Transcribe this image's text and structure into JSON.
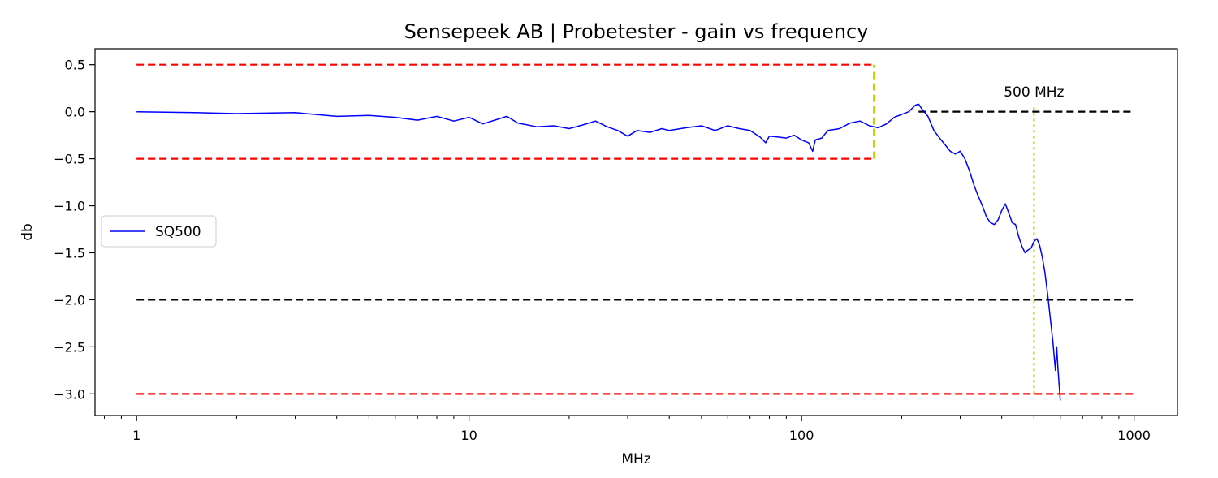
{
  "chart_data": {
    "type": "line",
    "title": "Sensepeek AB | Probetester - gain vs frequency",
    "xlabel": "MHz",
    "ylabel": "db",
    "xscale": "log",
    "xlim": [
      0.75,
      1350
    ],
    "ylim": [
      -3.23,
      0.67
    ],
    "xticks": [
      1,
      10,
      100,
      1000
    ],
    "xtick_labels": [
      "1",
      "10",
      "100",
      "1000"
    ],
    "yticks": [
      0.5,
      0.0,
      -0.5,
      -1.0,
      -1.5,
      -2.0,
      -2.5,
      -3.0
    ],
    "ytick_labels": [
      "0.5",
      "0.0",
      "−0.5",
      "−1.0",
      "−1.5",
      "−2.0",
      "−2.5",
      "−3.0"
    ],
    "grid": false,
    "legend": {
      "placement": "center-left",
      "entries": [
        "SQ500"
      ]
    },
    "series": [
      {
        "name": "SQ500",
        "color": "#0000ff",
        "x": [
          1,
          1.5,
          2,
          3,
          4,
          5,
          6,
          7,
          8,
          9,
          10,
          11,
          13,
          14,
          16,
          18,
          20,
          22,
          24,
          26,
          28,
          30,
          32,
          35,
          38,
          40,
          45,
          50,
          55,
          60,
          65,
          70,
          75,
          78,
          80,
          85,
          90,
          95,
          100,
          105,
          108,
          110,
          115,
          120,
          130,
          140,
          150,
          160,
          170,
          180,
          190,
          200,
          210,
          220,
          225,
          230,
          240,
          250,
          260,
          270,
          280,
          290,
          300,
          310,
          320,
          330,
          340,
          350,
          360,
          370,
          380,
          390,
          400,
          410,
          420,
          430,
          440,
          450,
          460,
          470,
          480,
          490,
          500,
          510,
          520,
          530,
          540,
          550,
          560,
          570,
          575,
          580,
          585,
          590,
          595,
          600
        ],
        "y": [
          0.0,
          -0.01,
          -0.02,
          -0.01,
          -0.05,
          -0.04,
          -0.06,
          -0.09,
          -0.05,
          -0.1,
          -0.06,
          -0.13,
          -0.05,
          -0.12,
          -0.16,
          -0.15,
          -0.18,
          -0.14,
          -0.1,
          -0.16,
          -0.2,
          -0.26,
          -0.2,
          -0.22,
          -0.18,
          -0.2,
          -0.17,
          -0.15,
          -0.2,
          -0.15,
          -0.18,
          -0.2,
          -0.27,
          -0.33,
          -0.26,
          -0.27,
          -0.28,
          -0.25,
          -0.3,
          -0.33,
          -0.42,
          -0.3,
          -0.28,
          -0.2,
          -0.18,
          -0.12,
          -0.1,
          -0.15,
          -0.17,
          -0.13,
          -0.06,
          -0.03,
          0.0,
          0.07,
          0.08,
          0.03,
          -0.05,
          -0.2,
          -0.28,
          -0.35,
          -0.42,
          -0.45,
          -0.42,
          -0.5,
          -0.63,
          -0.78,
          -0.9,
          -1.0,
          -1.12,
          -1.18,
          -1.2,
          -1.15,
          -1.05,
          -0.98,
          -1.08,
          -1.18,
          -1.2,
          -1.33,
          -1.43,
          -1.5,
          -1.47,
          -1.45,
          -1.38,
          -1.35,
          -1.42,
          -1.55,
          -1.72,
          -1.95,
          -2.2,
          -2.45,
          -2.6,
          -2.75,
          -2.5,
          -2.72,
          -2.9,
          -3.07
        ]
      }
    ],
    "reference_lines": [
      {
        "kind": "hline",
        "y": 0.5,
        "x_from": 1,
        "x_to": 165,
        "color": "#ff0000",
        "style": "dashed"
      },
      {
        "kind": "hline",
        "y": -0.5,
        "x_from": 1,
        "x_to": 165,
        "color": "#ff0000",
        "style": "dashed"
      },
      {
        "kind": "hline",
        "y": -3.0,
        "x_from": 1,
        "x_to": 1000,
        "color": "#ff0000",
        "style": "dashed"
      },
      {
        "kind": "hline",
        "y": 0.0,
        "x_from": 225,
        "x_to": 1000,
        "color": "#000000",
        "style": "dashed"
      },
      {
        "kind": "hline",
        "y": -2.0,
        "x_from": 1,
        "x_to": 1000,
        "color": "#000000",
        "style": "dashed"
      },
      {
        "kind": "vline",
        "x": 165,
        "y_from": -0.5,
        "y_to": 0.5,
        "color": "#cccc00",
        "style": "dashed"
      },
      {
        "kind": "vline",
        "x": 500,
        "y_from": -3.0,
        "y_to": 0.08,
        "color": "#cccc00",
        "style": "dotted"
      }
    ],
    "annotations": [
      {
        "text": "500 MHz",
        "x": 500,
        "y": 0.09
      }
    ]
  }
}
